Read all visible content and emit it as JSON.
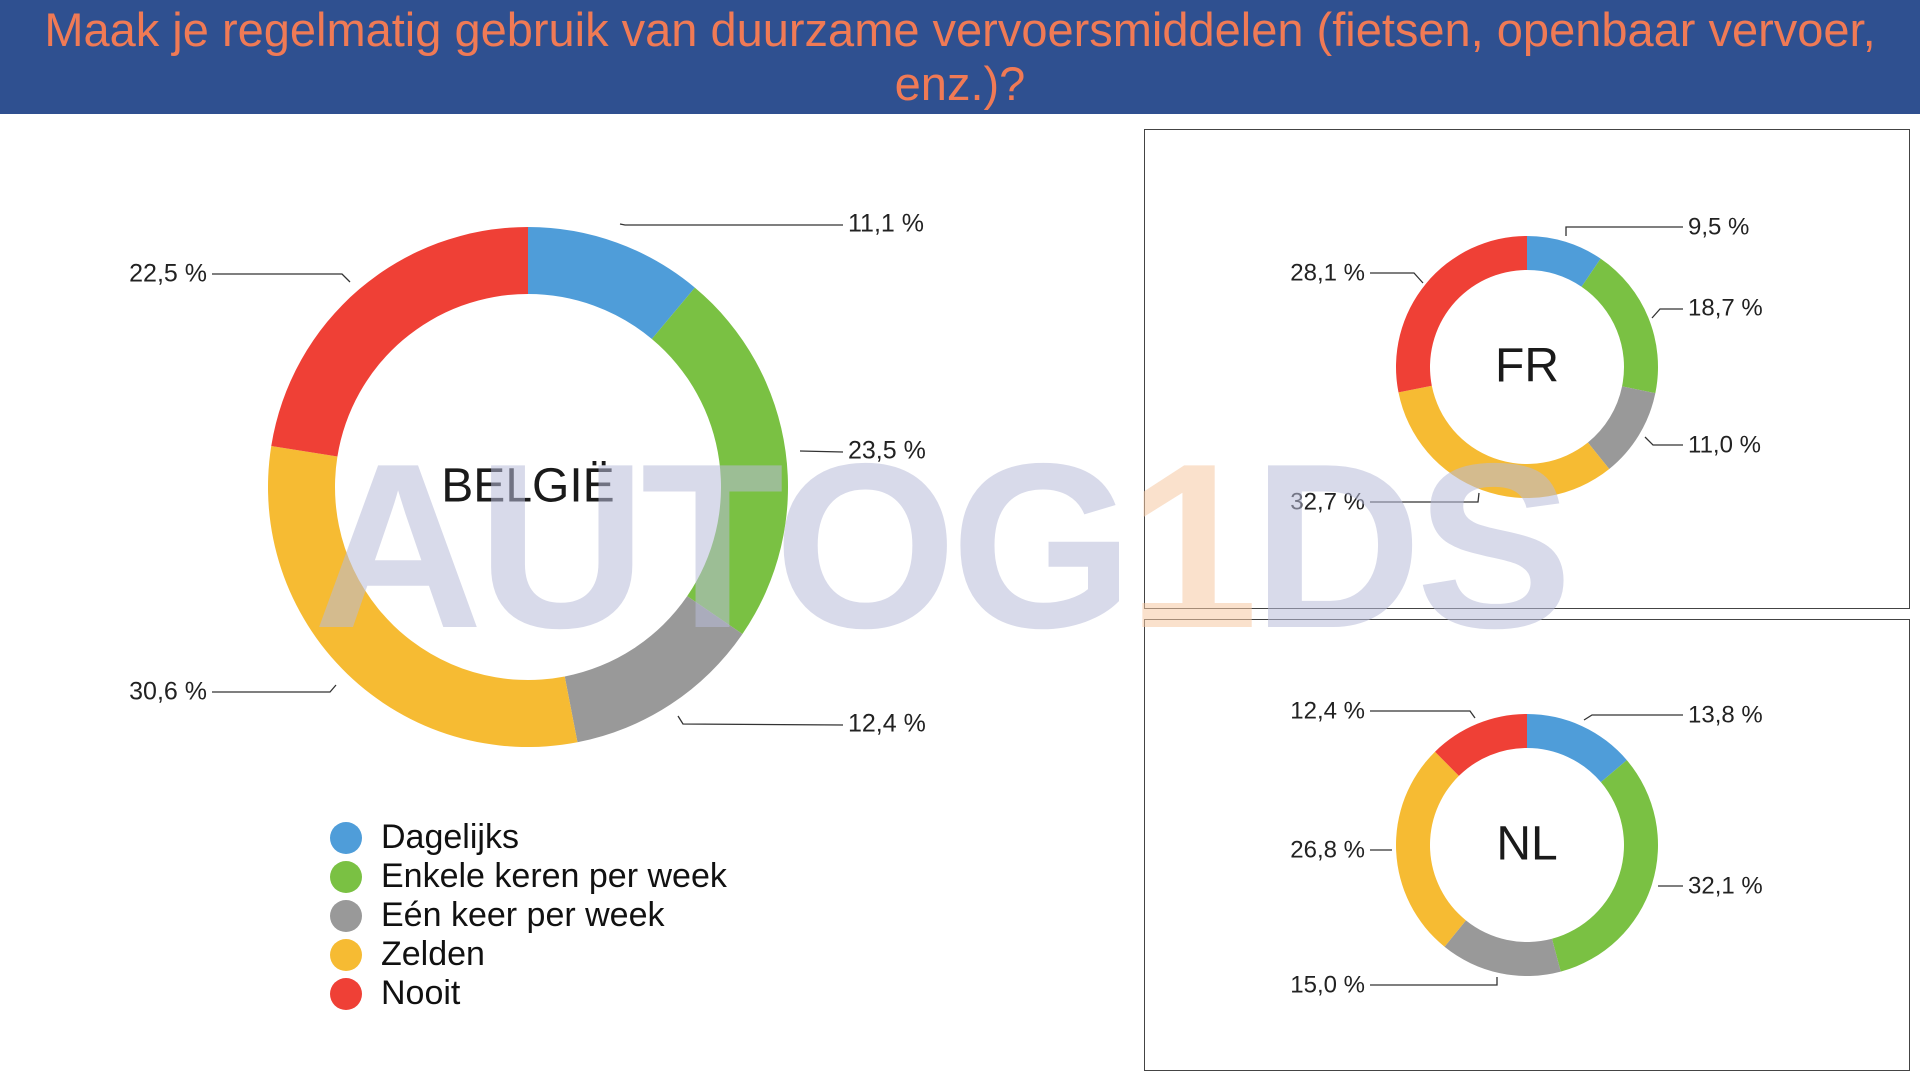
{
  "title": "Maak je regelmatig gebruik van duurzame vervoersmiddelen (fietsen, openbaar vervoer, enz.)?",
  "watermark": {
    "text_prefix": "AUTOG",
    "text_digit": "1",
    "text_suffix": "DS"
  },
  "legend": [
    {
      "label": "Dagelijks",
      "color": "#4f9dd9"
    },
    {
      "label": "Enkele keren per week",
      "color": "#7ac143"
    },
    {
      "label": "Eén keer per week",
      "color": "#999999"
    },
    {
      "label": "Zelden",
      "color": "#f6bb33"
    },
    {
      "label": "Nooit",
      "color": "#ef4036"
    }
  ],
  "chart_data": [
    {
      "type": "pie",
      "title": "BELGIË",
      "categories": [
        "Dagelijks",
        "Enkele keren per week",
        "Eén keer per week",
        "Zelden",
        "Nooit"
      ],
      "values": [
        11.1,
        23.5,
        12.4,
        30.6,
        22.5
      ],
      "labels": [
        "11,1 %",
        "23,5 %",
        "12,4 %",
        "30,6 %",
        "22,5 %"
      ]
    },
    {
      "type": "pie",
      "title": "FR",
      "categories": [
        "Dagelijks",
        "Enkele keren per week",
        "Eén keer per week",
        "Zelden",
        "Nooit"
      ],
      "values": [
        9.5,
        18.7,
        11.0,
        32.7,
        28.1
      ],
      "labels": [
        "9,5 %",
        "18,7 %",
        "11,0 %",
        "32,7 %",
        "28,1 %"
      ]
    },
    {
      "type": "pie",
      "title": "NL",
      "categories": [
        "Dagelijks",
        "Enkele keren per week",
        "Eén keer per week",
        "Zelden",
        "Nooit"
      ],
      "values": [
        13.8,
        32.1,
        15.0,
        26.8,
        12.4
      ],
      "labels": [
        "13,8 %",
        "32,1 %",
        "15,0 %",
        "26,8 %",
        "12,4 %"
      ]
    }
  ]
}
